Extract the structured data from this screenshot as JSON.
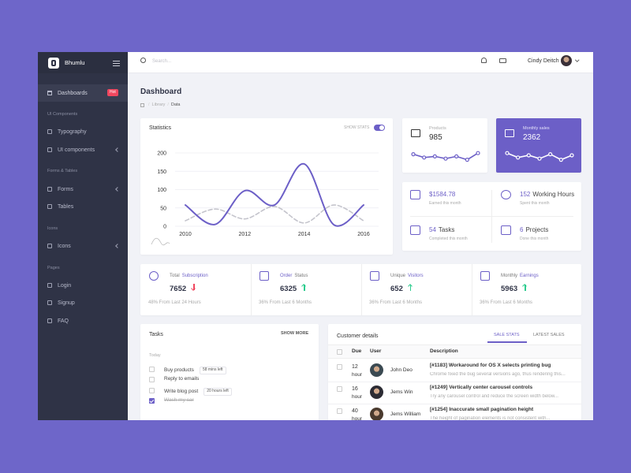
{
  "sidebar": {
    "brand": "Bhumlu",
    "dashboards": "Dashboards",
    "badge": "Hot",
    "sections": [
      {
        "title": "UI Components",
        "items": [
          "Typography",
          "UI components"
        ]
      },
      {
        "title": "Forms & Tables",
        "items": [
          "Forms",
          "Tables"
        ]
      },
      {
        "title": "Icons",
        "items": [
          "Icons"
        ]
      },
      {
        "title": "Pages",
        "items": [
          "Login",
          "Signup",
          "FAQ"
        ]
      }
    ]
  },
  "topbar": {
    "search": "Search...",
    "user": "Cindy Deitch"
  },
  "page": {
    "title": "Dashboard",
    "breadcrumb": [
      "Library",
      "Data"
    ]
  },
  "statistics": {
    "title": "Statistics",
    "toggle": "SHOW STATS"
  },
  "chart_data": {
    "type": "line",
    "x": [
      2010,
      2011,
      2012,
      2013,
      2014,
      2015,
      2016
    ],
    "series": [
      {
        "color": "#6c5fc7",
        "values": [
          58,
          5,
          97,
          58,
          170,
          4,
          58
        ]
      },
      {
        "color": "#c4c4cc",
        "dashed": true,
        "values": [
          15,
          47,
          20,
          54,
          9,
          58,
          15
        ]
      }
    ],
    "xlim": [
      2010,
      2016
    ],
    "xticks": [
      2010,
      2012,
      2014,
      2016
    ],
    "ylim": [
      0,
      200
    ],
    "yticks": [
      0,
      50,
      100,
      150,
      200
    ],
    "grid": true
  },
  "cards": {
    "products": {
      "label": "Products",
      "value": "985",
      "sparkline": [
        6,
        3,
        4,
        2,
        4,
        1,
        7
      ],
      "ylim": [
        0,
        10
      ]
    },
    "monthly": {
      "label": "Monthly sales",
      "value": "2362",
      "sparkline": [
        7,
        3,
        5,
        2,
        6,
        1,
        5
      ],
      "ylim": [
        0,
        10
      ]
    }
  },
  "info": [
    {
      "value": "$1584.78",
      "text": "",
      "sub": "Earned this month"
    },
    {
      "value": "152",
      "text": "Working Hours",
      "sub": "Spent this month"
    },
    {
      "value": "54",
      "text": "Tasks",
      "sub": "Completed this month"
    },
    {
      "value": "6",
      "text": "Projects",
      "sub": "Done this month"
    }
  ],
  "stats": [
    {
      "label": "Total",
      "highlight": "Subscription",
      "value": "7652",
      "trend": "down",
      "foot": "48% From Last 24 Hours"
    },
    {
      "label": "Status",
      "highlight": "Order",
      "value": "6325",
      "trend": "up",
      "foot": "36% From Last 6 Months",
      "highlight_first": true
    },
    {
      "label": "Unique",
      "highlight": "Visitors",
      "value": "652",
      "trend": "up",
      "foot": "36% From Last 6 Months"
    },
    {
      "label": "Monthly",
      "highlight": "Earnings",
      "value": "5963",
      "trend": "up",
      "foot": "36% From Last 6 Months"
    }
  ],
  "tasks": {
    "title": "Tasks",
    "more": "SHOW MORE",
    "group": "Today",
    "items": [
      {
        "label": "Buy products",
        "tag": "58 mins left",
        "done": false
      },
      {
        "label": "Reply to emails",
        "done": false
      },
      {
        "label": "Write blog post",
        "tag": "20 hours left",
        "done": false
      },
      {
        "label": "Wash my car",
        "done": true
      }
    ]
  },
  "customers": {
    "title": "Customer details",
    "tabs": [
      "SALE STATS",
      "LATEST SALES"
    ],
    "headers": [
      "Due",
      "User",
      "Description"
    ],
    "rows": [
      {
        "due": "12",
        "unit": "hour",
        "user": "John Deo",
        "title": "[#1183] Workaround for OS X selects printing bug",
        "body": "Chrome fixed the bug several versions ago, thus rendering this..."
      },
      {
        "due": "16",
        "unit": "hour",
        "user": "Jems Win",
        "title": "[#1249] Vertically center carousel controls",
        "body": "Try any carousel control and reduce the screen width below..."
      },
      {
        "due": "40",
        "unit": "hour",
        "user": "Jems William",
        "title": "[#1254] Inaccurate small pagination height",
        "body": "The height of pagination elements is not consistent with..."
      }
    ]
  }
}
